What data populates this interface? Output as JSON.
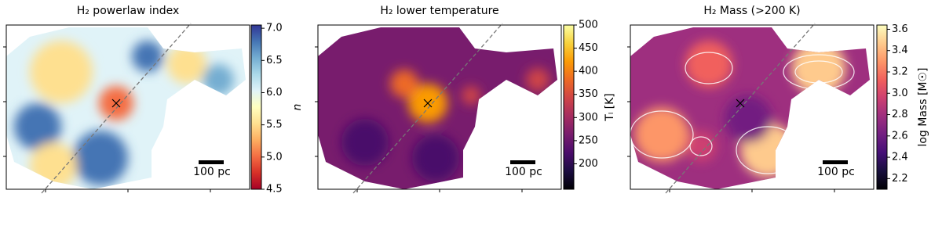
{
  "chart_data": [
    {
      "type": "image",
      "title": "H₂ powerlaw index",
      "colorbar_label": "n",
      "colormap": "RdYlBu",
      "clim": [
        4.5,
        7.05
      ],
      "cticks": [
        {
          "value": 4.5,
          "label": "4.5"
        },
        {
          "value": 5,
          "label": "5.0"
        },
        {
          "value": 5.5,
          "label": "5.5"
        },
        {
          "value": 6,
          "label": "6.0"
        },
        {
          "value": 6.5,
          "label": "6.5"
        },
        {
          "value": 7,
          "label": "7.0"
        }
      ],
      "scalebar_label": "100 pc"
    },
    {
      "type": "image",
      "title": "H₂ lower temperature",
      "colorbar_label": "Tₗ [K]",
      "colormap": "inferno",
      "clim": [
        145,
        500
      ],
      "cticks": [
        200,
        250,
        300,
        350,
        400,
        450,
        500
      ],
      "scalebar_label": "100 pc"
    },
    {
      "type": "image",
      "title": "H₂ Mass (>200 K)",
      "colorbar_label": "log Mass [M☉]",
      "colormap": "magma",
      "clim": [
        2.1,
        3.64
      ],
      "cticks": [
        2.2,
        2.4,
        2.6,
        2.8,
        {
          "value": 3,
          "label": "3.0"
        },
        3.2,
        3.4,
        3.6
      ],
      "scalebar_label": "100 pc"
    }
  ]
}
